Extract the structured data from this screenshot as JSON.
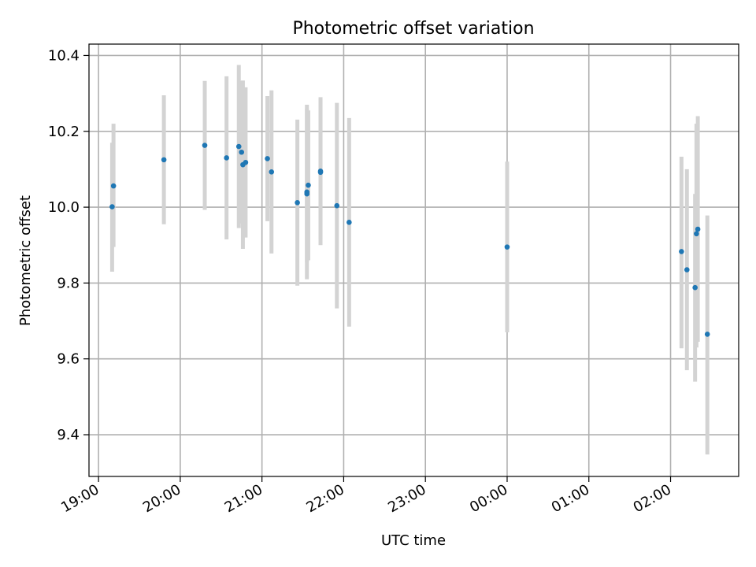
{
  "chart_data": {
    "type": "scatter",
    "title": "Photometric offset variation",
    "xlabel": "UTC time",
    "ylabel": "Photometric offset",
    "grid": true,
    "x_axis": "time",
    "xlim": [
      "18:53",
      "02:50"
    ],
    "ylim": [
      9.29,
      10.43
    ],
    "xticks": [
      "19:00",
      "20:00",
      "21:00",
      "22:00",
      "23:00",
      "00:00",
      "01:00",
      "02:00"
    ],
    "yticks": [
      9.4,
      9.6,
      9.8,
      10.0,
      10.2,
      10.4
    ],
    "marker_color": "#1f77b4",
    "errorbar_color": "#d3d3d3",
    "series": [
      {
        "points": [
          {
            "x": "19:10",
            "y": 10.001,
            "lo": 9.83,
            "hi": 10.17
          },
          {
            "x": "19:11",
            "y": 10.056,
            "lo": 9.895,
            "hi": 10.22
          },
          {
            "x": "19:48",
            "y": 10.125,
            "lo": 9.955,
            "hi": 10.295
          },
          {
            "x": "20:18",
            "y": 10.163,
            "lo": 9.993,
            "hi": 10.333
          },
          {
            "x": "20:34",
            "y": 10.13,
            "lo": 9.915,
            "hi": 10.345
          },
          {
            "x": "20:43",
            "y": 10.16,
            "lo": 9.945,
            "hi": 10.375
          },
          {
            "x": "20:45",
            "y": 10.145,
            "lo": 9.957,
            "hi": 10.333
          },
          {
            "x": "20:46",
            "y": 10.112,
            "lo": 9.89,
            "hi": 10.334
          },
          {
            "x": "20:48",
            "y": 10.118,
            "lo": 9.92,
            "hi": 10.316
          },
          {
            "x": "21:04",
            "y": 10.128,
            "lo": 9.963,
            "hi": 10.293
          },
          {
            "x": "21:07",
            "y": 10.093,
            "lo": 9.878,
            "hi": 10.308
          },
          {
            "x": "21:26",
            "y": 10.012,
            "lo": 9.793,
            "hi": 10.231
          },
          {
            "x": "21:33",
            "y": 10.04,
            "lo": 9.81,
            "hi": 10.27
          },
          {
            "x": "21:33",
            "y": 10.035,
            "lo": 9.855,
            "hi": 10.26
          },
          {
            "x": "21:34",
            "y": 10.058,
            "lo": 9.86,
            "hi": 10.255
          },
          {
            "x": "21:43",
            "y": 10.095,
            "lo": 9.9,
            "hi": 10.29
          },
          {
            "x": "21:43",
            "y": 10.092,
            "lo": 9.915,
            "hi": 10.285
          },
          {
            "x": "21:55",
            "y": 10.004,
            "lo": 9.733,
            "hi": 10.275
          },
          {
            "x": "22:04",
            "y": 9.96,
            "lo": 9.685,
            "hi": 10.235
          },
          {
            "x": "00:00",
            "y": 9.895,
            "lo": 9.67,
            "hi": 10.12
          },
          {
            "x": "02:08",
            "y": 9.883,
            "lo": 9.628,
            "hi": 10.133
          },
          {
            "x": "02:12",
            "y": 9.835,
            "lo": 9.57,
            "hi": 10.1
          },
          {
            "x": "02:18",
            "y": 9.788,
            "lo": 9.54,
            "hi": 10.035
          },
          {
            "x": "02:19",
            "y": 9.93,
            "lo": 9.63,
            "hi": 10.22
          },
          {
            "x": "02:20",
            "y": 9.942,
            "lo": 9.645,
            "hi": 10.24
          },
          {
            "x": "02:27",
            "y": 9.665,
            "lo": 9.348,
            "hi": 9.978
          }
        ]
      }
    ]
  }
}
